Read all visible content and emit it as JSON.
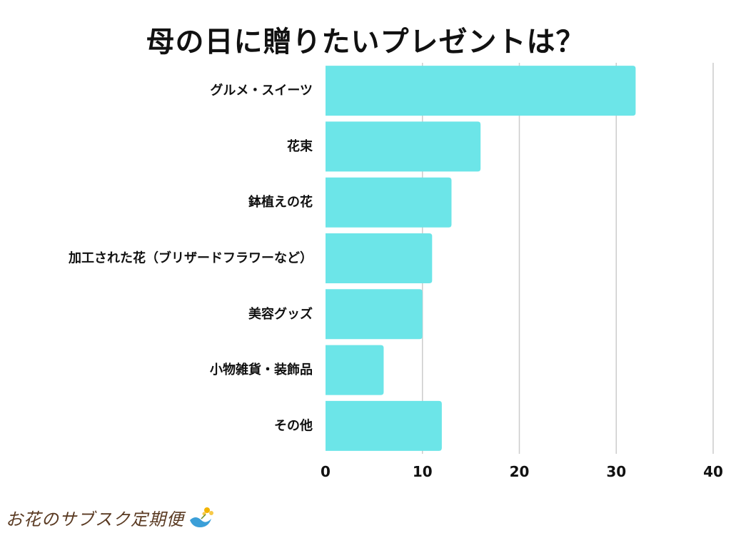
{
  "chart_data": {
    "type": "bar",
    "orientation": "horizontal",
    "title": "母の日に贈りたいプレゼントは？",
    "categories": [
      "グルメ・スイーツ",
      "花束",
      "鉢植えの花",
      "加工された花（ブリザードフラワーなど）",
      "美容グッズ",
      "小物雑貨・装飾品",
      "その他"
    ],
    "values": [
      32,
      16,
      13,
      11,
      10,
      6,
      12
    ],
    "xlim": [
      0,
      40
    ],
    "xticks": [
      0,
      10,
      20,
      30,
      40
    ],
    "grid": true,
    "bar_color": "#6ce5e8",
    "grid_color": "#cccccc"
  },
  "brand": {
    "text": "お花のサブスク定期便"
  }
}
